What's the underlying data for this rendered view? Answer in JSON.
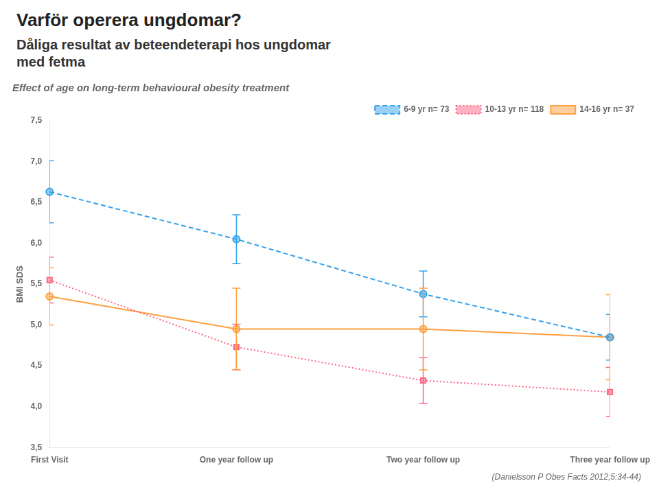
{
  "chart_data": {
    "type": "line",
    "title": "Varför operera ungdomar?",
    "subtitle": "Dåliga resultat av beteendeterapi hos ungdomar\nmed fetma",
    "annotations": [
      "Effect of age on long-term behavioural obesity treatment",
      "(Danielsson P Obes Facts 2012;5:34-44)"
    ],
    "ylabel": "BMI SDS",
    "categories": [
      "First Visit",
      "One year follow up",
      "Two year follow up",
      "Three year follow up"
    ],
    "series": [
      {
        "name": "6-9 yr n= 73",
        "line_style": "dashed",
        "marker": "circle",
        "values": [
          6.63,
          6.05,
          5.38,
          4.85
        ],
        "error_low": [
          0.38,
          0.3,
          0.28,
          0.28
        ],
        "error_high": [
          0.38,
          0.3,
          0.28,
          0.28
        ]
      },
      {
        "name": "10-13 yr n= 118",
        "line_style": "dotted",
        "marker": "square",
        "values": [
          5.55,
          4.73,
          4.32,
          4.18
        ],
        "error_low": [
          0.28,
          0.28,
          0.28,
          0.3
        ],
        "error_high": [
          0.28,
          0.28,
          0.28,
          0.3
        ]
      },
      {
        "name": "14-16 yr n= 37",
        "line_style": "solid",
        "marker": "circle",
        "values": [
          5.35,
          4.95,
          4.95,
          4.85
        ],
        "error_low": [
          0.35,
          0.5,
          0.5,
          0.52
        ],
        "error_high": [
          0.35,
          0.5,
          0.5,
          0.52
        ]
      }
    ],
    "ylim": [
      3.5,
      7.5
    ],
    "yticks": [
      {
        "value": 3.5,
        "label": "3,5"
      },
      {
        "value": 4.0,
        "label": "4,0"
      },
      {
        "value": 4.5,
        "label": "4,5"
      },
      {
        "value": 5.0,
        "label": "5,0"
      },
      {
        "value": 5.5,
        "label": "5,5"
      },
      {
        "value": 6.0,
        "label": "6,0"
      },
      {
        "value": 6.5,
        "label": "6,5"
      },
      {
        "value": 7.0,
        "label": "7,0"
      },
      {
        "value": 7.5,
        "label": "7,5"
      }
    ],
    "grid": false,
    "legend": "upper right"
  }
}
